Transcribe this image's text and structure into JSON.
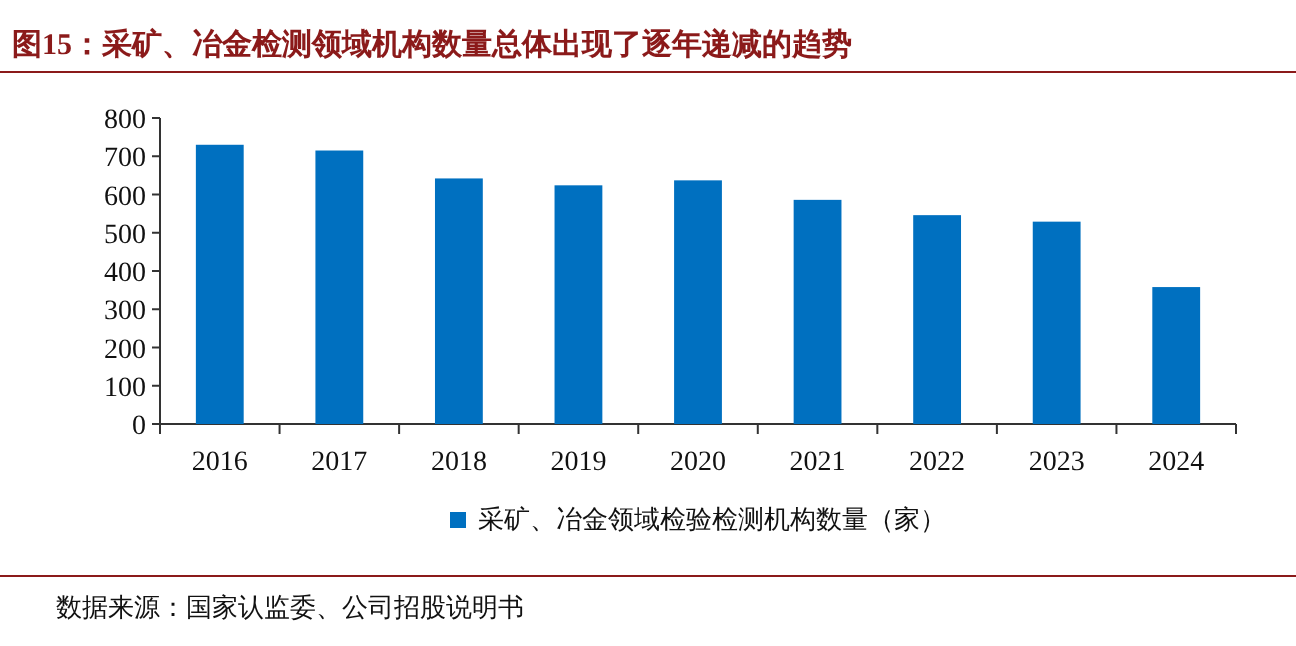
{
  "chart_data": {
    "type": "bar",
    "title": "图15：采矿、冶金检测领域机构数量总体出现了逐年递减的趋势",
    "categories": [
      "2016",
      "2017",
      "2018",
      "2019",
      "2020",
      "2021",
      "2022",
      "2023",
      "2024"
    ],
    "series": [
      {
        "name": "采矿、冶金领域检验检测机构数量（家）",
        "color": "#0070c0",
        "values": [
          730,
          715,
          642,
          624,
          637,
          586,
          546,
          529,
          358
        ]
      }
    ],
    "ylim": [
      0,
      800
    ],
    "yticks": [
      0,
      100,
      200,
      300,
      400,
      500,
      600,
      700,
      800
    ],
    "legend": "bottom",
    "annotations": [
      "数据来源：国家认监委、公司招股说明书"
    ]
  }
}
